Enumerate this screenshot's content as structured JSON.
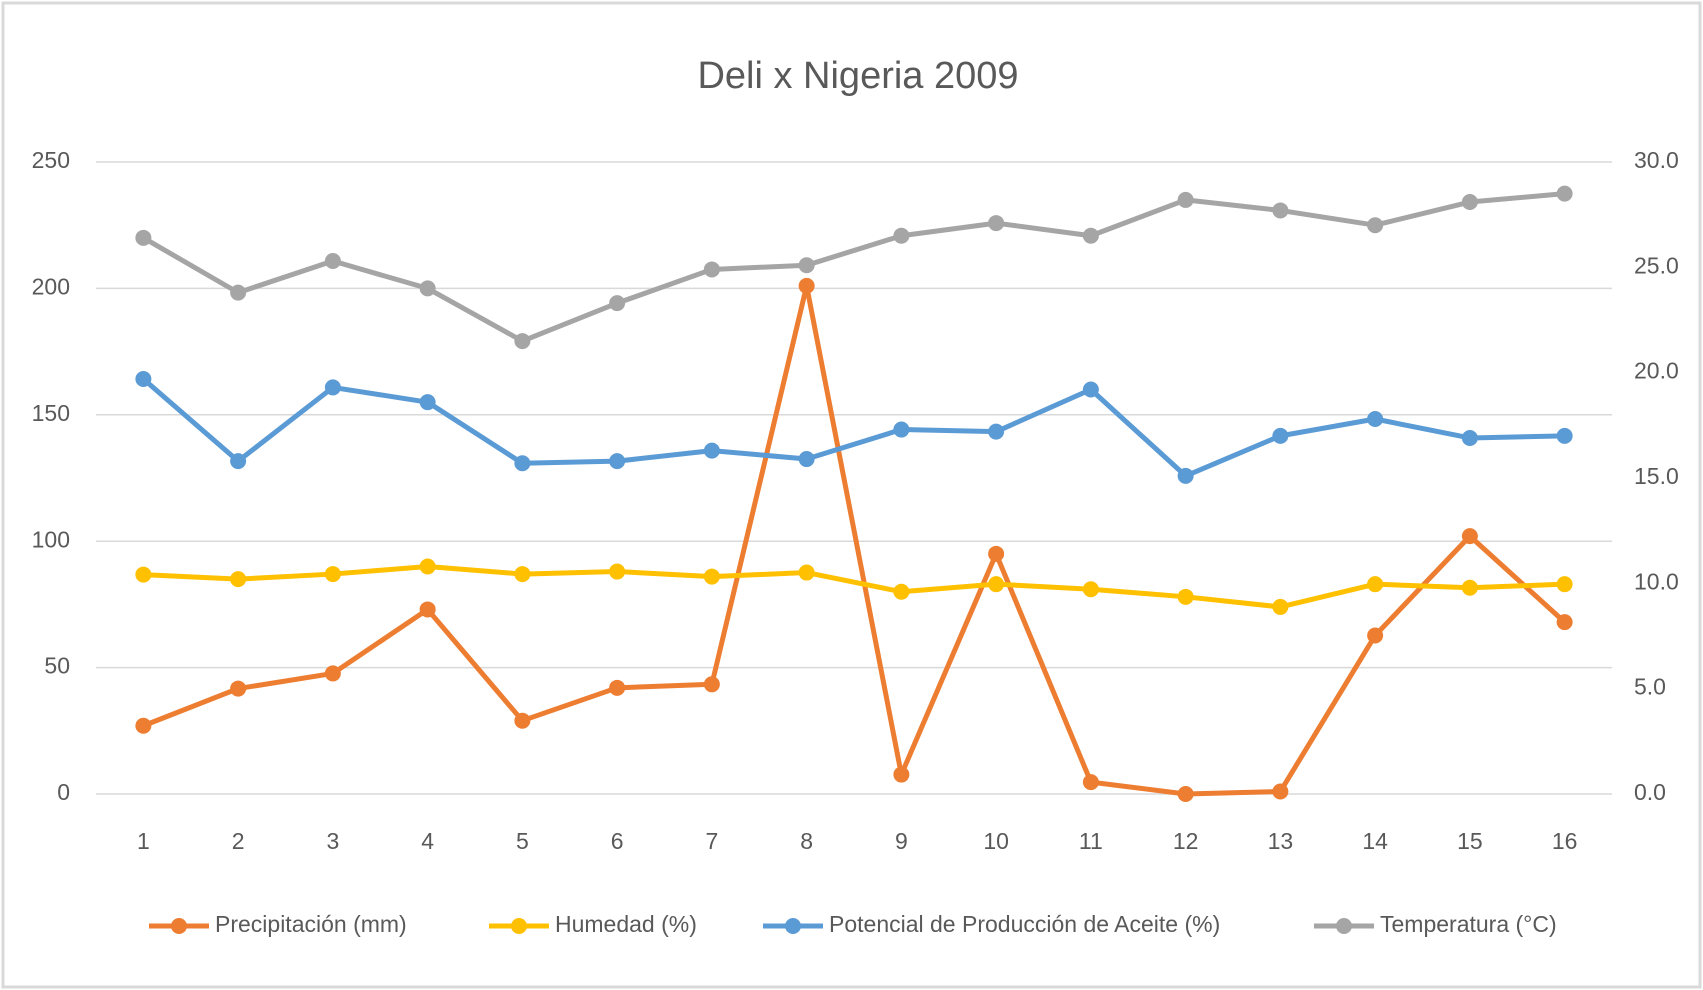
{
  "chart_data": {
    "type": "line",
    "title": "Deli x Nigeria 2009",
    "categories": [
      "1",
      "2",
      "3",
      "4",
      "5",
      "6",
      "7",
      "8",
      "9",
      "10",
      "11",
      "12",
      "13",
      "14",
      "15",
      "16"
    ],
    "series": [
      {
        "name": "Precipitación (mm)",
        "color": "#ed7d31",
        "values": [
          27,
          41.7,
          47.7,
          73,
          29,
          42,
          43.4,
          201,
          7.7,
          95,
          4.7,
          0,
          1,
          62.7,
          102,
          68
        ]
      },
      {
        "name": "Humedad (%)",
        "color": "#ffc000",
        "values": [
          86.8,
          85,
          87,
          90,
          87,
          88,
          86,
          87.6,
          80,
          83,
          81,
          78,
          74,
          83,
          81.6,
          83
        ]
      },
      {
        "name": "Potencial de Producción de Aceite (%)",
        "color": "#5b9bd5",
        "axis": "y2",
        "values": [
          19.7,
          15.8,
          19.3,
          18.6,
          15.7,
          15.8,
          16.3,
          15.9,
          17.3,
          17.2,
          19.2,
          15.1,
          17.0,
          17.8,
          16.9,
          17.0
        ]
      },
      {
        "name": "Temperatura (°C)",
        "color": "#a5a5a5",
        "axis": "y2",
        "values": [
          26.4,
          23.8,
          25.3,
          24.0,
          21.5,
          23.3,
          24.9,
          25.1,
          26.5,
          27.1,
          26.5,
          28.2,
          27.7,
          27.0,
          28.1,
          28.5
        ]
      }
    ],
    "ylim": [
      0,
      250
    ],
    "yticks": [
      0,
      50,
      100,
      150,
      200,
      250
    ],
    "y2lim": [
      0,
      30
    ],
    "y2ticks": [
      {
        "value": 0,
        "label": "0.0"
      },
      {
        "value": 5,
        "label": "5.0"
      },
      {
        "value": 10,
        "label": "10.0"
      },
      {
        "value": 15,
        "label": "15.0"
      },
      {
        "value": 20,
        "label": "20.0"
      },
      {
        "value": 25,
        "label": "25.0"
      },
      {
        "value": 30,
        "label": "30.0"
      }
    ],
    "grid": true,
    "legend": "bottom"
  }
}
